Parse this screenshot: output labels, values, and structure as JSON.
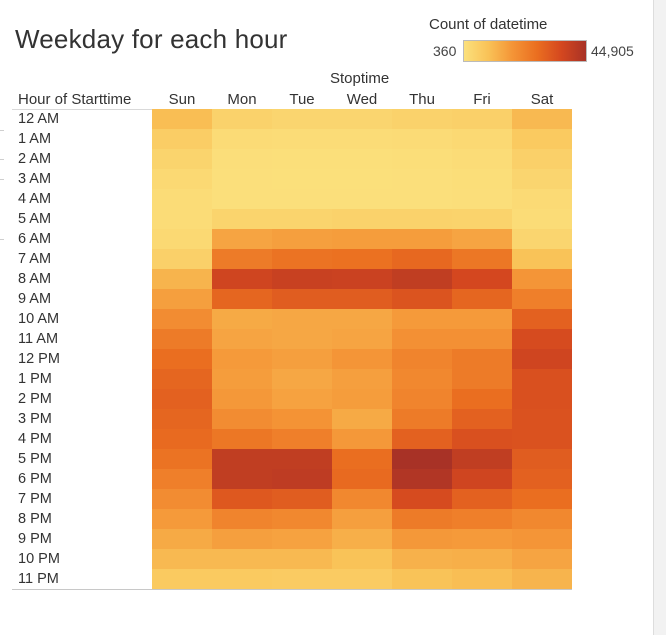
{
  "chart_data": {
    "type": "heatmap",
    "title": "Weekday for each hour",
    "column_field_label": "Stoptime",
    "row_field_label": "Hour of Starttime",
    "columns": [
      "Sun",
      "Mon",
      "Tue",
      "Wed",
      "Thu",
      "Fri",
      "Sat"
    ],
    "rows": [
      "12 AM",
      "1 AM",
      "2 AM",
      "3 AM",
      "4 AM",
      "5 AM",
      "6 AM",
      "7 AM",
      "8 AM",
      "9 AM",
      "10 AM",
      "11 AM",
      "12 PM",
      "1 PM",
      "2 PM",
      "3 PM",
      "4 PM",
      "5 PM",
      "6 PM",
      "7 PM",
      "8 PM",
      "9 PM",
      "10 PM",
      "11 PM"
    ],
    "values": [
      [
        10000,
        4500,
        3500,
        3500,
        4500,
        5000,
        11000
      ],
      [
        6000,
        1800,
        1500,
        1500,
        1800,
        2500,
        7000
      ],
      [
        4000,
        900,
        800,
        800,
        1000,
        1500,
        5000
      ],
      [
        2500,
        600,
        500,
        500,
        600,
        1000,
        3500
      ],
      [
        1500,
        700,
        700,
        700,
        700,
        900,
        2000
      ],
      [
        1500,
        4000,
        4000,
        4500,
        4500,
        4200,
        1500
      ],
      [
        2500,
        15000,
        16000,
        16500,
        16500,
        15000,
        3500
      ],
      [
        5000,
        24000,
        26000,
        26500,
        28500,
        25000,
        9000
      ],
      [
        12000,
        37000,
        38500,
        38000,
        40000,
        36000,
        18000
      ],
      [
        16000,
        29000,
        31000,
        31000,
        33000,
        29000,
        23000
      ],
      [
        20000,
        14000,
        14500,
        14500,
        17000,
        17000,
        30000
      ],
      [
        24000,
        15000,
        14500,
        15000,
        19000,
        19000,
        35000
      ],
      [
        27000,
        17000,
        16000,
        18000,
        22000,
        24000,
        37000
      ],
      [
        29000,
        16500,
        14500,
        16000,
        21000,
        24000,
        34000
      ],
      [
        30000,
        17500,
        15500,
        16500,
        22000,
        27000,
        34000
      ],
      [
        29000,
        20000,
        18500,
        14000,
        24000,
        30000,
        33500
      ],
      [
        28000,
        25000,
        23000,
        17500,
        30000,
        34000,
        33500
      ],
      [
        26000,
        40000,
        40000,
        27000,
        44905,
        40000,
        31000
      ],
      [
        23000,
        40000,
        40500,
        28000,
        43000,
        37000,
        30000
      ],
      [
        20000,
        32000,
        31000,
        21000,
        35000,
        30000,
        27000
      ],
      [
        17000,
        22000,
        21000,
        16000,
        24000,
        23000,
        21000
      ],
      [
        14000,
        16000,
        15500,
        13000,
        17500,
        17000,
        18000
      ],
      [
        11000,
        11000,
        11000,
        9000,
        12500,
        13000,
        15000
      ],
      [
        7000,
        7000,
        6500,
        6500,
        9000,
        10000,
        12000
      ]
    ],
    "color_scale": {
      "label": "Count of datetime",
      "min": 360,
      "max": 44905,
      "min_label": "360",
      "max_label": "44,905",
      "stops": [
        "#fbe07c",
        "#f9c257",
        "#f49436",
        "#ea6e20",
        "#d4471f",
        "#a83226"
      ]
    }
  }
}
